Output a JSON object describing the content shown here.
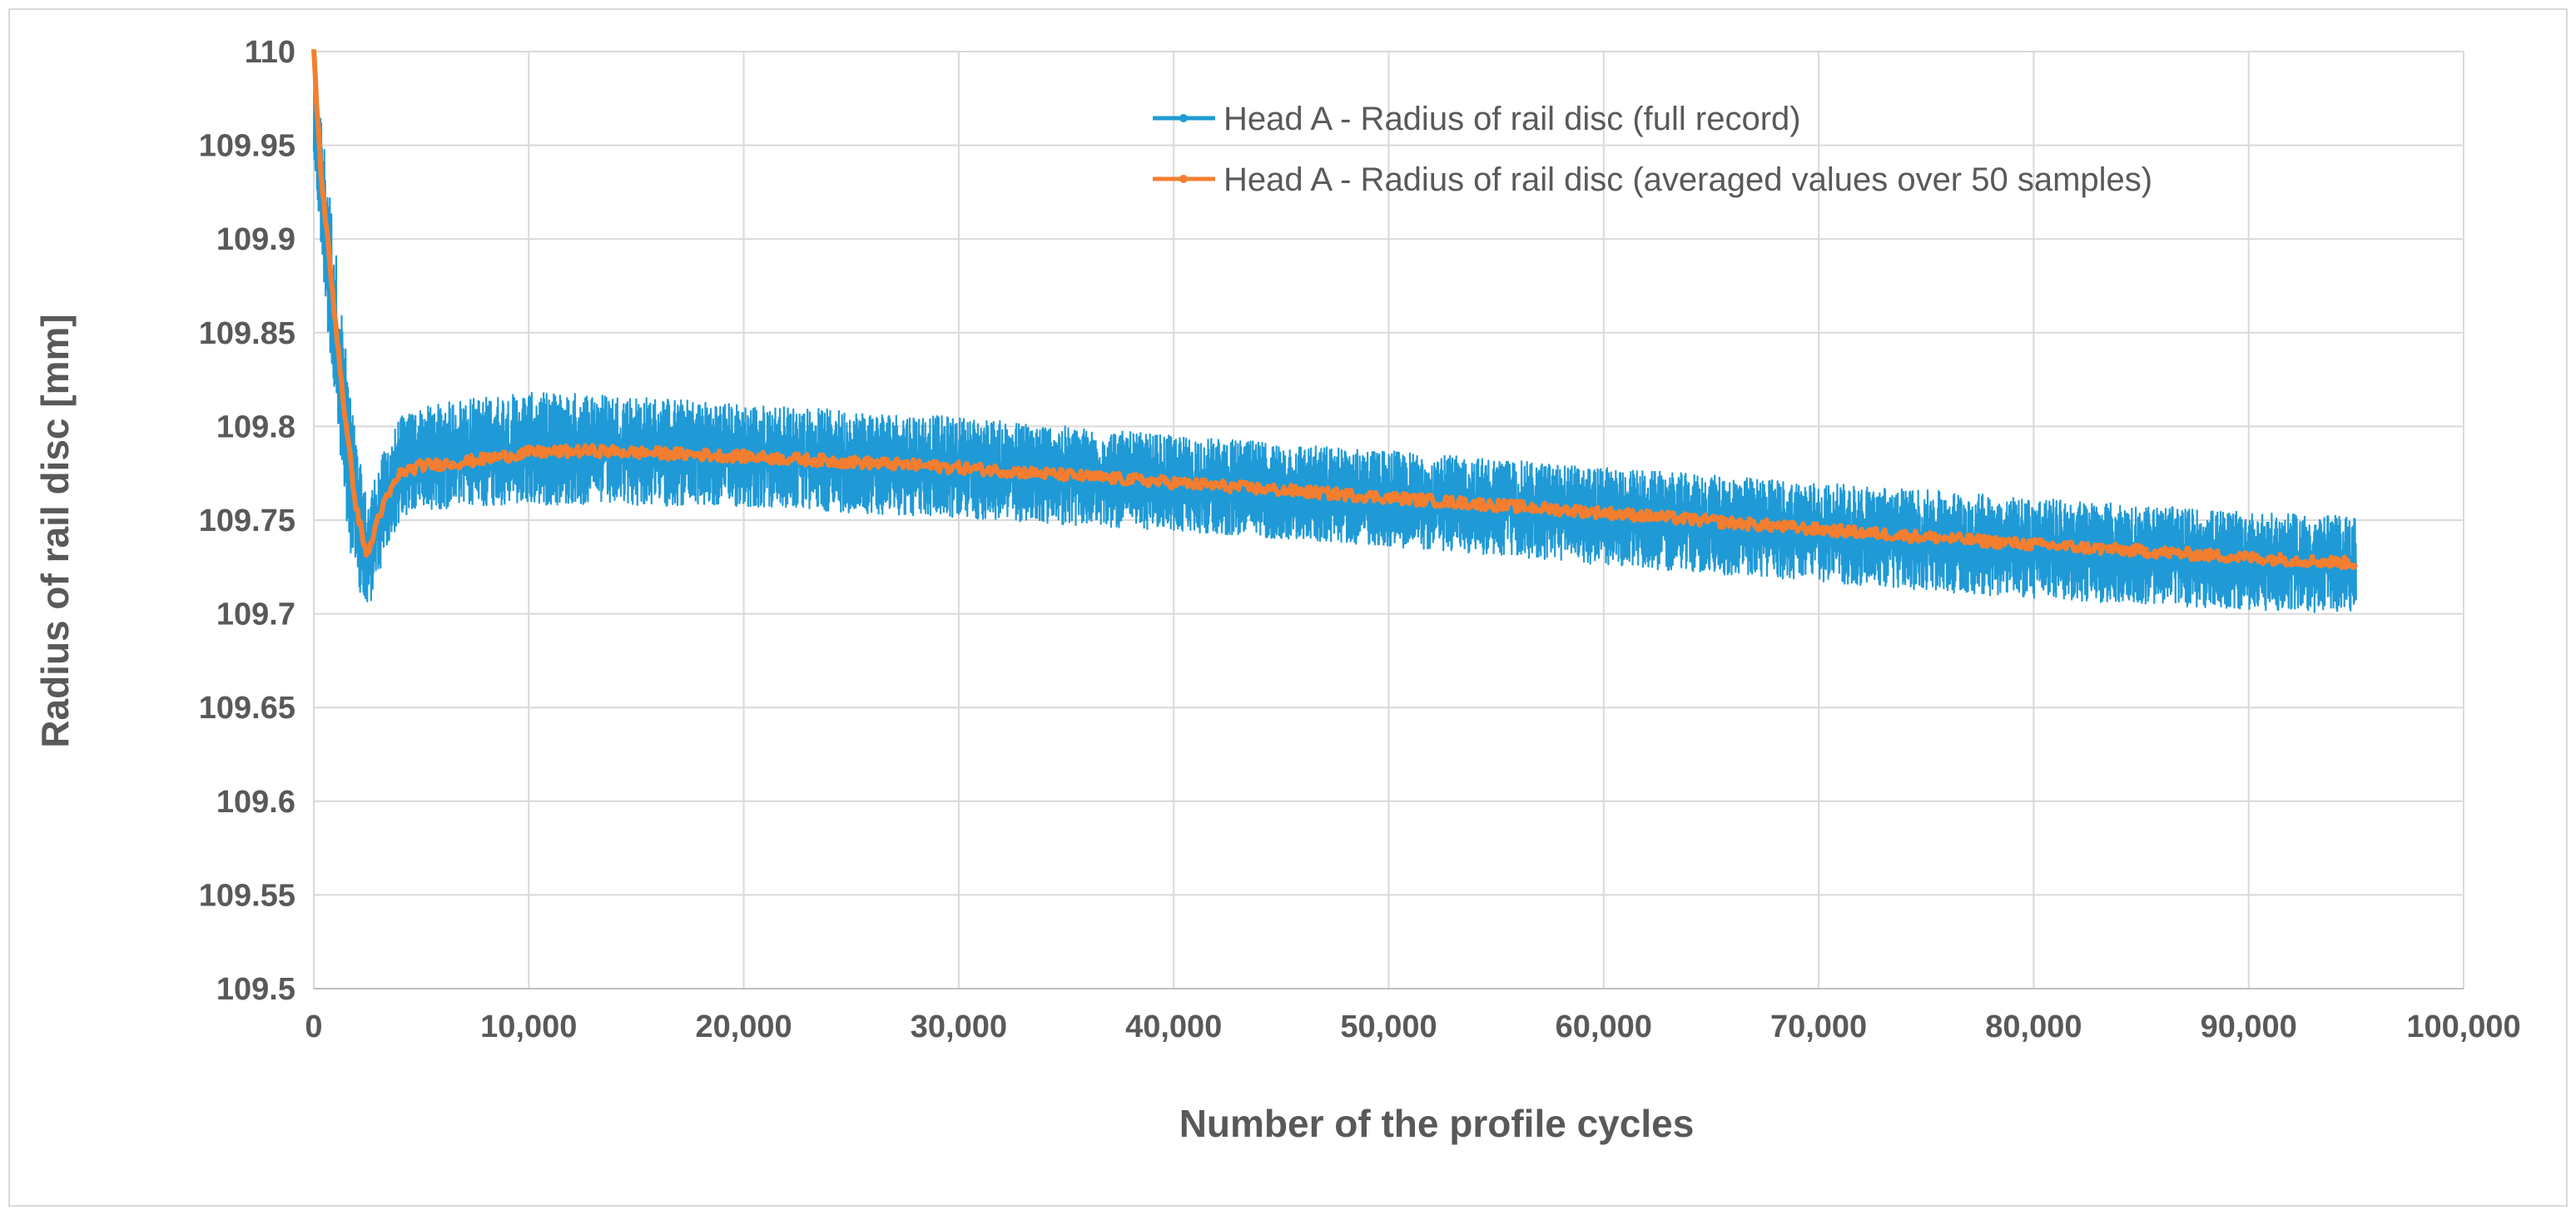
{
  "chart_data": {
    "type": "line",
    "title": "",
    "xlabel": "Number of the profile cycles",
    "ylabel": "Radius of rail disc [mm]",
    "xlim": [
      0,
      100000
    ],
    "ylim": [
      109.5,
      110
    ],
    "x_ticks": [
      "0",
      "10,000",
      "20,000",
      "30,000",
      "40,000",
      "50,000",
      "60,000",
      "70,000",
      "80,000",
      "90,000",
      "100,000"
    ],
    "y_ticks": [
      "109.5",
      "109.55",
      "109.6",
      "109.65",
      "109.7",
      "109.75",
      "109.8",
      "109.85",
      "109.9",
      "109.95",
      "110"
    ],
    "grid": true,
    "legend_position": "top-right",
    "series": [
      {
        "name": "Head A - Radius of rail disc (full record)",
        "color": "#1f9ad6",
        "x": [
          0,
          300,
          800,
          1500,
          2000,
          2500,
          3000,
          4000,
          5000,
          7000,
          10000,
          13000,
          20000,
          30000,
          40000,
          50000,
          60000,
          70000,
          80000,
          90000,
          95000
        ],
        "lower": [
          109.94,
          109.9,
          109.83,
          109.75,
          109.71,
          109.7,
          109.72,
          109.75,
          109.755,
          109.757,
          109.758,
          109.758,
          109.757,
          109.751,
          109.744,
          109.736,
          109.726,
          109.717,
          109.708,
          109.702,
          109.7
        ],
        "upper": [
          110.0,
          109.97,
          109.92,
          109.84,
          109.79,
          109.76,
          109.78,
          109.805,
          109.81,
          109.815,
          109.818,
          109.818,
          109.812,
          109.805,
          109.795,
          109.787,
          109.778,
          109.77,
          109.762,
          109.754,
          109.752
        ]
      },
      {
        "name": "Head A - Radius of rail disc (averaged values over 50 samples)",
        "color": "#f47e30",
        "x": [
          0,
          300,
          800,
          1500,
          2000,
          2500,
          3000,
          4000,
          5000,
          7000,
          10000,
          13000,
          20000,
          30000,
          40000,
          50000,
          60000,
          70000,
          80000,
          90000,
          95000
        ],
        "y": [
          110.0,
          109.94,
          109.88,
          109.8,
          109.755,
          109.73,
          109.752,
          109.775,
          109.779,
          109.781,
          109.786,
          109.787,
          109.784,
          109.778,
          109.77,
          109.762,
          109.754,
          109.745,
          109.737,
          109.73,
          109.727
        ]
      }
    ]
  }
}
